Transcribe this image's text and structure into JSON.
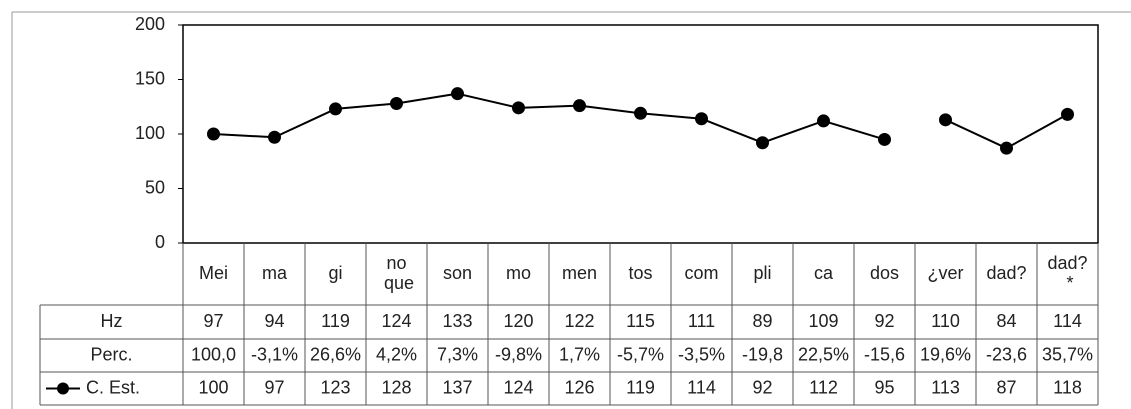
{
  "chart_data": {
    "type": "line",
    "categories": [
      "Mei",
      "ma",
      "gi",
      "no que",
      "son",
      "mo",
      "men",
      "tos",
      "com",
      "pli",
      "ca",
      "dos",
      "¿ver",
      "dad?",
      "dad? *"
    ],
    "series": [
      {
        "name": "C. Est.",
        "color": "#000000",
        "values": [
          100,
          97,
          123,
          128,
          137,
          124,
          126,
          119,
          114,
          92,
          112,
          95,
          113,
          87,
          118
        ]
      }
    ],
    "ylim": [
      0,
      200
    ],
    "yticks": [
      0,
      50,
      100,
      150,
      200
    ],
    "grid": false,
    "broken_after": [
      11
    ],
    "data_table": {
      "rows": [
        {
          "name": "Hz",
          "values": [
            97,
            94,
            119,
            124,
            133,
            120,
            122,
            115,
            111,
            89,
            109,
            92,
            110,
            84,
            114
          ]
        },
        {
          "name": "Perc.",
          "values": [
            "100,0",
            "-3,1%",
            "26,6%",
            "4,2%",
            "7,3%",
            "-9,8%",
            "1,7%",
            "-5,7%",
            "-3,5%",
            "-19,8",
            "22,5%",
            "-15,6",
            "19,6%",
            "-23,6",
            "35,7%"
          ]
        }
      ]
    }
  }
}
